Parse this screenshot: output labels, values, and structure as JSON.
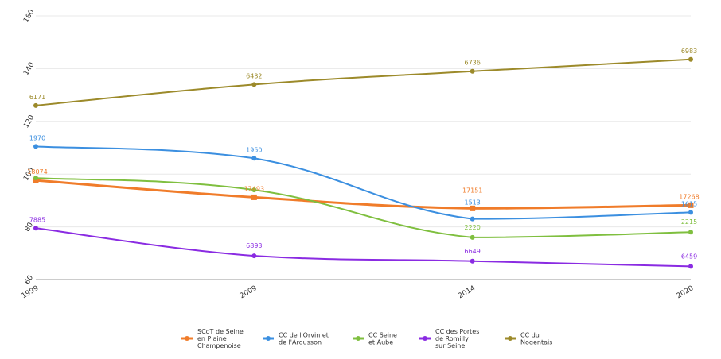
{
  "chart_data": {
    "type": "line",
    "title": "",
    "xlabel": "",
    "ylabel": "",
    "categories": [
      "1999",
      "2009",
      "2014",
      "2020"
    ],
    "y_ticks": [
      "60",
      "80",
      "100",
      "120",
      "140",
      "160"
    ],
    "ylim": [
      60,
      160
    ],
    "grid": true,
    "legend_position": "bottom",
    "series": [
      {
        "name": "SCoT de Seine en Plaine Champenoise",
        "color": "#f07c2a",
        "values": [
          97.6,
          91.2,
          87.0,
          88.2
        ],
        "labels": [
          "18074",
          "17493",
          "17151",
          "17268"
        ]
      },
      {
        "name": "CC de l'Orvin et de l'Ardusson",
        "color": "#3b8fe0",
        "values": [
          110.5,
          106.0,
          83.0,
          85.5
        ],
        "labels": [
          "1970",
          "1950",
          "1513",
          "1615"
        ]
      },
      {
        "name": "CC Seine et Aube",
        "color": "#7fbf3f",
        "values": [
          98.5,
          94.0,
          76.0,
          78.0
        ],
        "labels": [
          "",
          "",
          "2220",
          "2215"
        ]
      },
      {
        "name": "CC des Portes de Romilly sur Seine",
        "color": "#8a2be2",
        "values": [
          79.5,
          69.0,
          67.0,
          65.0
        ],
        "labels": [
          "7885",
          "6893",
          "6649",
          "6459"
        ]
      },
      {
        "name": "CC du Nogentais",
        "color": "#9c8a2a",
        "values": [
          126.0,
          134.0,
          139.0,
          143.5
        ],
        "labels": [
          "6171",
          "6432",
          "6736",
          "6983"
        ]
      }
    ],
    "legend": {
      "entries": [
        {
          "lines": [
            "SCoT de Seine",
            "en Plaine",
            "Champenoise"
          ],
          "color": "#f07c2a"
        },
        {
          "lines": [
            "CC de l'Orvin et",
            "de l'Ardusson"
          ],
          "color": "#3b8fe0"
        },
        {
          "lines": [
            "CC Seine",
            "et Aube"
          ],
          "color": "#7fbf3f"
        },
        {
          "lines": [
            "CC des Portes",
            "de Romilly",
            "sur Seine"
          ],
          "color": "#8a2be2"
        },
        {
          "lines": [
            "CC du",
            "Nogentais"
          ],
          "color": "#9c8a2a"
        }
      ]
    }
  }
}
